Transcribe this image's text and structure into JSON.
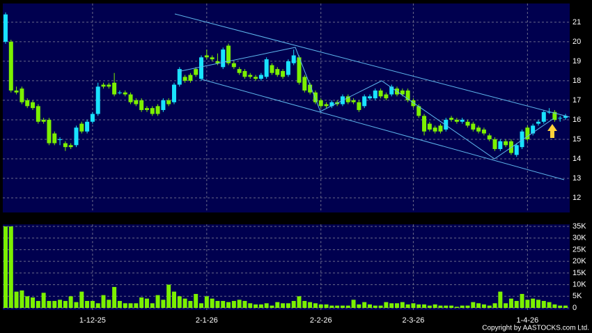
{
  "chart_data": [
    {
      "type": "candlestick",
      "up_color": "#19e3ff",
      "down_color": "#7cf000",
      "background": "#00004f",
      "grid": true,
      "ylim": [
        11.25,
        21.96
      ],
      "yticks": [
        12,
        13,
        14,
        15,
        16,
        17,
        18,
        19,
        20,
        21
      ],
      "open": [
        20.0,
        20.0,
        17.5,
        17.6,
        17.0,
        16.9,
        16.7,
        16.0,
        16.0,
        15.3,
        15.0,
        14.8,
        14.7,
        14.7,
        15.8,
        15.4,
        15.9,
        16.3,
        17.8,
        17.8,
        17.9,
        17.4,
        17.4,
        17.3,
        17.0,
        17.0,
        16.6,
        16.6,
        16.7,
        16.5,
        17.0,
        16.9,
        17.8,
        18.2,
        18.3,
        18.6,
        18.1,
        19.3,
        19.2,
        19.0,
        18.7,
        19.8,
        18.9,
        18.6,
        18.5,
        18.3,
        18.2,
        18.1,
        18.2,
        18.8,
        18.6,
        18.5,
        18.3,
        18.9,
        19.2,
        18.2,
        17.8,
        17.4,
        17.0,
        16.8,
        16.7,
        16.9,
        16.8,
        17.2,
        17.0,
        16.9,
        16.7,
        17.1,
        17.1,
        17.5,
        17.3,
        17.3,
        17.6,
        17.5,
        17.5,
        17.0,
        16.7,
        16.2,
        15.8,
        15.6,
        15.7,
        15.5,
        16.1,
        16.0,
        15.9,
        15.9,
        15.8,
        15.6,
        15.5,
        15.2,
        15.0,
        14.5,
        14.9,
        14.9,
        14.2,
        14.6,
        15.6,
        15.3,
        15.8,
        15.9,
        16.4,
        16.4,
        16.1,
        16.1
      ],
      "high": [
        21.5,
        20.1,
        17.7,
        17.7,
        17.1,
        17.0,
        16.8,
        16.1,
        16.1,
        15.4,
        15.1,
        14.9,
        14.8,
        15.7,
        15.9,
        16.0,
        16.4,
        17.9,
        17.9,
        17.9,
        18.4,
        17.5,
        17.5,
        17.4,
        17.1,
        17.1,
        16.7,
        16.7,
        16.8,
        17.1,
        17.1,
        17.9,
        18.7,
        18.3,
        18.4,
        18.7,
        19.3,
        19.6,
        19.3,
        19.4,
        19.7,
        19.9,
        19.0,
        18.7,
        18.6,
        18.4,
        18.3,
        18.4,
        19.2,
        18.9,
        18.7,
        18.6,
        19.1,
        19.6,
        19.3,
        18.3,
        17.9,
        17.5,
        17.1,
        16.9,
        17.0,
        17.0,
        17.3,
        17.3,
        17.1,
        17.0,
        17.3,
        17.3,
        17.6,
        17.6,
        17.4,
        17.8,
        17.7,
        17.6,
        17.6,
        17.1,
        16.8,
        16.3,
        15.9,
        15.7,
        15.8,
        16.1,
        16.2,
        16.1,
        16.1,
        16.0,
        15.9,
        15.7,
        15.6,
        15.3,
        15.1,
        15.0,
        15.0,
        15.0,
        14.8,
        15.5,
        15.7,
        15.8,
        16.0,
        16.5,
        16.6,
        16.5,
        16.2,
        16.3
      ],
      "low": [
        19.9,
        17.4,
        17.3,
        16.8,
        16.6,
        16.5,
        15.8,
        15.8,
        14.7,
        14.7,
        14.7,
        14.4,
        14.5,
        14.6,
        15.3,
        15.3,
        15.8,
        16.2,
        17.6,
        17.6,
        17.2,
        17.3,
        17.2,
        16.8,
        16.7,
        16.4,
        16.4,
        16.2,
        16.2,
        16.4,
        16.7,
        16.8,
        17.7,
        17.9,
        17.9,
        18.2,
        18.0,
        19.1,
        19.0,
        18.8,
        18.6,
        18.8,
        18.6,
        18.3,
        18.1,
        18.1,
        18.0,
        18.0,
        18.1,
        18.3,
        18.2,
        18.1,
        18.2,
        18.8,
        17.8,
        17.4,
        17.3,
        16.8,
        16.6,
        16.6,
        16.6,
        16.7,
        16.7,
        16.8,
        16.8,
        16.4,
        16.6,
        17.0,
        17.0,
        17.1,
        17.0,
        17.2,
        17.2,
        17.2,
        16.9,
        16.6,
        16.1,
        15.2,
        15.4,
        15.3,
        15.3,
        15.4,
        15.9,
        15.8,
        15.8,
        15.6,
        15.4,
        15.3,
        15.2,
        14.9,
        14.4,
        14.4,
        14.6,
        14.2,
        14.1,
        14.5,
        14.9,
        15.2,
        15.7,
        15.8,
        16.3,
        15.9,
        15.9,
        16.0
      ],
      "close": [
        21.4,
        17.5,
        17.4,
        16.9,
        16.7,
        16.6,
        15.9,
        15.9,
        14.8,
        14.8,
        15.0,
        14.6,
        14.6,
        15.6,
        15.4,
        15.9,
        16.3,
        17.7,
        17.7,
        17.7,
        17.3,
        17.4,
        17.3,
        16.9,
        16.8,
        16.5,
        16.5,
        16.3,
        16.3,
        17.0,
        16.8,
        17.8,
        18.6,
        18.0,
        18.0,
        18.3,
        19.2,
        19.2,
        19.1,
        18.9,
        19.6,
        18.9,
        18.7,
        18.4,
        18.2,
        18.2,
        18.1,
        18.3,
        19.1,
        18.4,
        18.3,
        18.2,
        19.0,
        19.3,
        17.9,
        17.5,
        17.4,
        16.9,
        16.7,
        16.7,
        16.9,
        16.8,
        17.2,
        16.9,
        16.9,
        16.5,
        17.2,
        17.2,
        17.5,
        17.2,
        17.1,
        17.7,
        17.3,
        17.3,
        17.0,
        16.7,
        16.2,
        15.4,
        15.5,
        15.4,
        15.4,
        16.0,
        16.0,
        15.9,
        16.0,
        15.7,
        15.5,
        15.4,
        15.3,
        15.0,
        14.5,
        14.9,
        14.7,
        14.3,
        14.7,
        15.4,
        15.0,
        15.7,
        15.9,
        16.4,
        16.4,
        16.0,
        16.1,
        16.2
      ]
    },
    {
      "type": "bar",
      "color": "#7cf000",
      "background": "#00004f",
      "grid": true,
      "ylim": [
        -900,
        35900
      ],
      "yticks": [
        0,
        {
          "value": 5000,
          "label": "5K"
        },
        {
          "value": 10000,
          "label": "10K"
        },
        {
          "value": 15000,
          "label": "15K"
        },
        {
          "value": 20000,
          "label": "20K"
        },
        {
          "value": 25000,
          "label": "25K"
        },
        {
          "value": 30000,
          "label": "30K"
        },
        {
          "value": 35000,
          "label": "35K"
        }
      ],
      "categories": [
        null,
        null,
        null,
        null,
        null,
        null,
        null,
        null,
        null,
        null,
        null,
        null,
        null,
        null,
        null,
        null,
        "1-12-25",
        null,
        null,
        null,
        null,
        null,
        null,
        null,
        null,
        null,
        null,
        null,
        null,
        null,
        null,
        null,
        null,
        null,
        null,
        null,
        null,
        "2-1-26",
        null,
        null,
        null,
        null,
        null,
        null,
        null,
        null,
        null,
        null,
        null,
        null,
        null,
        null,
        null,
        null,
        null,
        null,
        null,
        null,
        "2-2-26",
        null,
        null,
        null,
        null,
        null,
        null,
        null,
        null,
        null,
        null,
        null,
        null,
        null,
        null,
        null,
        null,
        "2-3-26",
        null,
        null,
        null,
        null,
        null,
        null,
        null,
        null,
        null,
        null,
        null,
        null,
        null,
        null,
        null,
        null,
        null,
        null,
        null,
        null,
        "1-4-26",
        null,
        null,
        null,
        null,
        null,
        null,
        null
      ],
      "values": [
        35000,
        35000,
        7000,
        7500,
        5000,
        4500,
        3000,
        6500,
        3000,
        3000,
        3500,
        3000,
        5000,
        2500,
        7000,
        3000,
        3000,
        2000,
        5500,
        3500,
        9000,
        3000,
        2000,
        2000,
        2000,
        4500,
        4000,
        2000,
        5500,
        3500,
        10000,
        7000,
        5000,
        4000,
        3000,
        6000,
        2000,
        5000,
        4000,
        3000,
        3000,
        2500,
        3000,
        3500,
        3000,
        2000,
        1500,
        1500,
        2000,
        1000,
        2500,
        2000,
        2000,
        3000,
        5000,
        3000,
        2500,
        2000,
        1500,
        1500,
        1000,
        1000,
        1000,
        1000,
        3500,
        1500,
        2500,
        1500,
        1000,
        1000,
        2500,
        2000,
        2000,
        2500,
        1500,
        2000,
        1500,
        1500,
        1000,
        1500,
        1000,
        1000,
        1000,
        500,
        1000,
        1000,
        2500,
        2000,
        1500,
        1000,
        2000,
        7000,
        2000,
        4000,
        3000,
        6000,
        3500,
        4000,
        3500,
        3000,
        2500,
        1500,
        1000,
        1000
      ],
      "footer": "Copyright by AASTOCKS.com Ltd."
    }
  ]
}
